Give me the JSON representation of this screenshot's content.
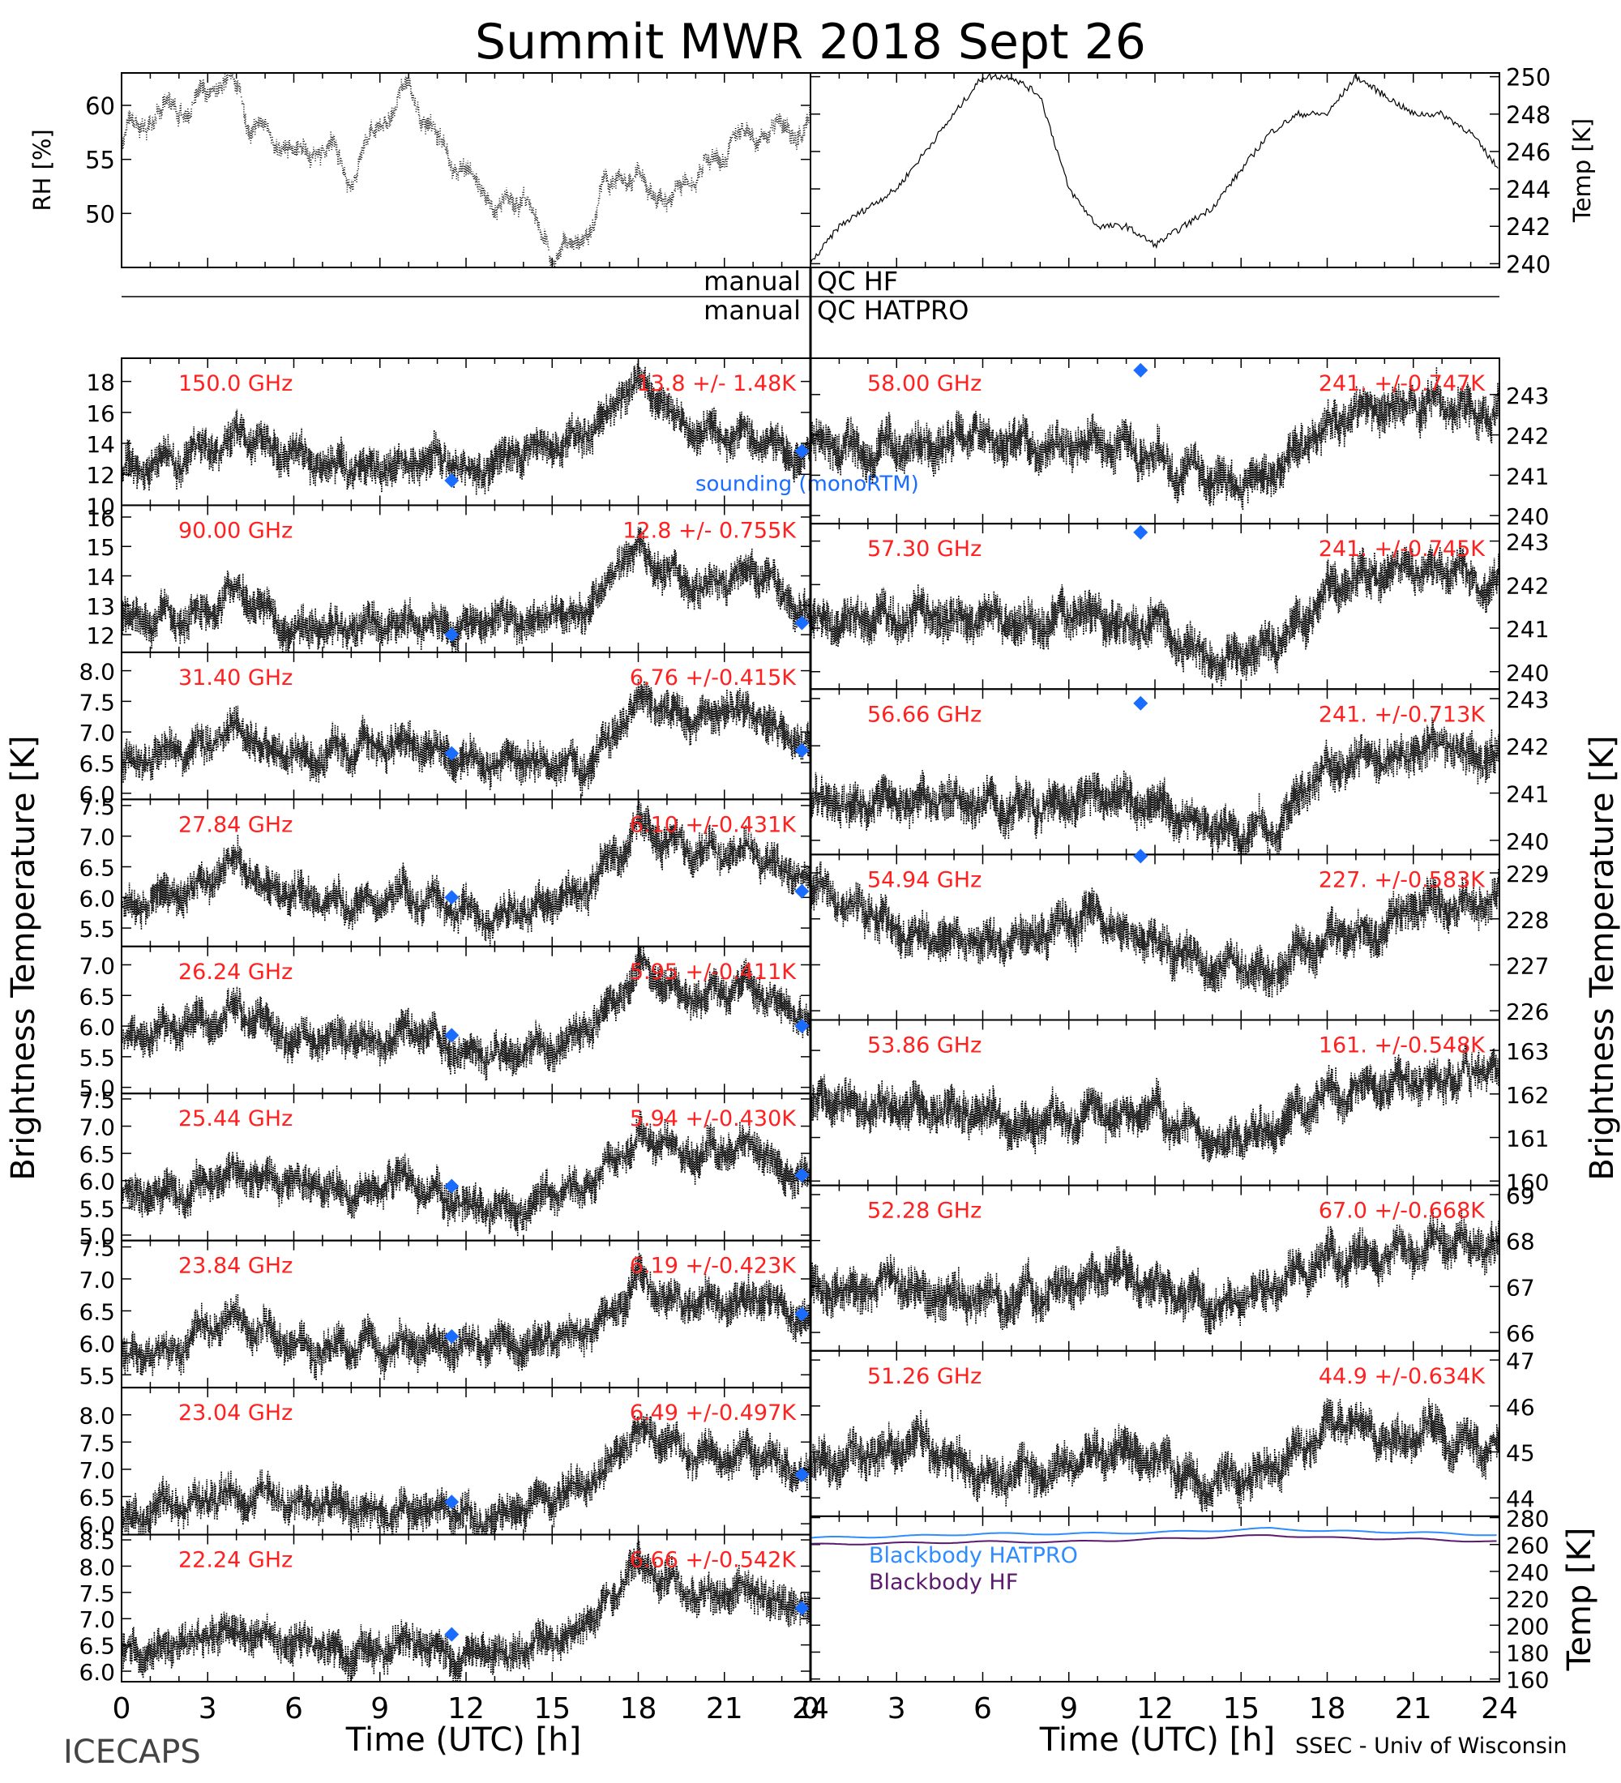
{
  "figure": {
    "title": "Summit MWR 2018 Sept 26",
    "footer_left": "ICECAPS",
    "footer_right": "SSEC - Univ of Wisconsin",
    "left_axis_label": "Brightness Temperature [K]",
    "right_axis_label": "Brightness Temperature [K]",
    "xlabel": "Time (UTC) [h]",
    "x_ticks": [
      "0",
      "3",
      "6",
      "9",
      "12",
      "15",
      "18",
      "21",
      "24"
    ],
    "qc_rows": [
      {
        "left": "manual",
        "right": "QC HF"
      },
      {
        "left": "manual",
        "right": "QC HATPRO"
      }
    ],
    "sounding_label": "sounding (monoRTM)",
    "colors": {
      "trace": "#000000",
      "stats": "#ff2020",
      "sounding": "#1a6cff",
      "bb_hatpro": "#2f8cff",
      "bb_hf": "#5a1a6e"
    }
  },
  "chart_data": [
    {
      "type": "scatter",
      "panel": "rh",
      "ylabel": "RH [%]",
      "yticks": [
        "50",
        "55",
        "60"
      ],
      "ylim": [
        45,
        63
      ],
      "xlim": [
        0,
        24
      ],
      "x": [
        0,
        1,
        2,
        3,
        4,
        5,
        6,
        7,
        8,
        9,
        10,
        11,
        12,
        13,
        14,
        15,
        16,
        17,
        18,
        19,
        20,
        21,
        22,
        23,
        24
      ],
      "values": [
        57,
        59,
        60,
        61,
        61,
        57,
        55,
        56,
        54,
        58,
        61,
        57,
        53,
        50,
        52,
        46,
        47,
        52,
        53,
        51,
        53,
        56,
        58,
        58,
        57
      ]
    },
    {
      "type": "line",
      "panel": "temp",
      "ylabel": "Temp [K]",
      "yticks": [
        "240",
        "242",
        "244",
        "246",
        "248",
        "250"
      ],
      "ylim": [
        239.8,
        250.2
      ],
      "xlim": [
        0,
        24
      ],
      "x": [
        0,
        1,
        2,
        3,
        4,
        5,
        6,
        7,
        8,
        9,
        10,
        11,
        12,
        13,
        14,
        15,
        16,
        17,
        18,
        19,
        20,
        21,
        22,
        23,
        24
      ],
      "values": [
        240,
        242,
        243,
        244,
        246,
        248,
        250,
        250,
        249,
        244,
        242,
        242,
        241,
        242,
        243,
        245,
        247,
        248,
        248,
        250,
        249,
        248,
        248,
        247,
        245
      ]
    },
    {
      "type": "scatter",
      "col": "left",
      "channel": "150.0 GHz",
      "stats": "13.8 +/- 1.48K",
      "ylim": [
        10,
        19.5
      ],
      "yticks": [
        "10",
        "12",
        "14",
        "16",
        "18"
      ],
      "x": [
        0,
        2,
        4,
        6,
        8,
        10,
        12,
        14,
        16,
        18,
        20,
        22,
        24
      ],
      "values": [
        12.5,
        13,
        14.5,
        13,
        12.5,
        13,
        12.5,
        13.5,
        14,
        18,
        15,
        14.5,
        13
      ],
      "sounding": [
        [
          11.5,
          11.6
        ],
        [
          23.7,
          13.5
        ]
      ]
    },
    {
      "type": "scatter",
      "col": "left",
      "channel": "90.00 GHz",
      "stats": "12.8 +/- 0.755K",
      "ylim": [
        11.4,
        16.4
      ],
      "yticks": [
        "12",
        "13",
        "14",
        "15",
        "16"
      ],
      "x": [
        0,
        2,
        4,
        6,
        8,
        10,
        12,
        14,
        16,
        18,
        20,
        22,
        24
      ],
      "values": [
        12.5,
        12.5,
        13.5,
        12.3,
        12.3,
        12.5,
        12.3,
        12.7,
        12.7,
        15,
        13.5,
        14,
        12.5
      ],
      "sounding": [
        [
          11.5,
          12
        ],
        [
          23.7,
          12.4
        ]
      ]
    },
    {
      "type": "scatter",
      "col": "left",
      "channel": "31.40 GHz",
      "stats": "6.76 +/-0.415K",
      "ylim": [
        5.9,
        8.3
      ],
      "yticks": [
        "6.0",
        "6.5",
        "7.0",
        "7.5",
        "8.0"
      ],
      "x": [
        0,
        2,
        4,
        6,
        8,
        10,
        12,
        14,
        16,
        18,
        20,
        22,
        24
      ],
      "values": [
        6.5,
        6.7,
        7,
        6.7,
        6.7,
        6.8,
        6.5,
        6.5,
        6.4,
        7.5,
        7.2,
        7.3,
        6.8
      ],
      "sounding": [
        [
          11.5,
          6.65
        ],
        [
          23.7,
          6.7
        ]
      ]
    },
    {
      "type": "scatter",
      "col": "left",
      "channel": "27.84 GHz",
      "stats": "6.10 +/-0.431K",
      "ylim": [
        5.2,
        7.6
      ],
      "yticks": [
        "5.5",
        "6.0",
        "6.5",
        "7.0",
        "7.5"
      ],
      "x": [
        0,
        2,
        4,
        6,
        8,
        10,
        12,
        14,
        16,
        18,
        20,
        22,
        24
      ],
      "values": [
        5.8,
        6.1,
        6.5,
        6.0,
        6.0,
        6.1,
        5.8,
        5.7,
        6.0,
        7.2,
        6.7,
        6.7,
        6.2
      ],
      "sounding": [
        [
          11.5,
          6.0
        ],
        [
          23.7,
          6.1
        ]
      ]
    },
    {
      "type": "scatter",
      "col": "left",
      "channel": "26.24 GHz",
      "stats": "5.95 +/-0.411K",
      "ylim": [
        4.9,
        7.3
      ],
      "yticks": [
        "5.0",
        "5.5",
        "6.0",
        "6.5",
        "7.0"
      ],
      "x": [
        0,
        2,
        4,
        6,
        8,
        10,
        12,
        14,
        16,
        18,
        20,
        22,
        24
      ],
      "values": [
        5.7,
        6.0,
        6.3,
        5.8,
        5.8,
        5.9,
        5.6,
        5.6,
        5.8,
        6.9,
        6.5,
        6.6,
        6.0
      ],
      "sounding": [
        [
          11.5,
          5.85
        ],
        [
          23.7,
          6.0
        ]
      ]
    },
    {
      "type": "scatter",
      "col": "left",
      "channel": "25.44 GHz",
      "stats": "5.94 +/-0.430K",
      "ylim": [
        4.9,
        7.6
      ],
      "yticks": [
        "5.0",
        "5.5",
        "6.0",
        "6.5",
        "7.0",
        "7.5"
      ],
      "x": [
        0,
        2,
        4,
        6,
        8,
        10,
        12,
        14,
        16,
        18,
        20,
        22,
        24
      ],
      "values": [
        5.7,
        5.9,
        6.2,
        5.8,
        5.8,
        5.9,
        5.5,
        5.5,
        5.8,
        6.9,
        6.5,
        6.6,
        6.0
      ],
      "sounding": [
        [
          11.5,
          5.9
        ],
        [
          23.7,
          6.1
        ]
      ]
    },
    {
      "type": "scatter",
      "col": "left",
      "channel": "23.84 GHz",
      "stats": "6.19 +/-0.423K",
      "ylim": [
        5.3,
        7.6
      ],
      "yticks": [
        "5.5",
        "6.0",
        "6.5",
        "7.0",
        "7.5"
      ],
      "x": [
        0,
        2,
        4,
        6,
        8,
        10,
        12,
        14,
        16,
        18,
        20,
        22,
        24
      ],
      "values": [
        5.8,
        6.0,
        6.4,
        5.9,
        5.9,
        6.0,
        5.9,
        6.0,
        6.1,
        7.0,
        6.6,
        6.8,
        6.4
      ],
      "sounding": [
        [
          11.5,
          6.1
        ],
        [
          23.7,
          6.45
        ]
      ]
    },
    {
      "type": "scatter",
      "col": "left",
      "channel": "23.04 GHz",
      "stats": "6.49 +/-0.497K",
      "ylim": [
        5.8,
        8.5
      ],
      "yticks": [
        "6.0",
        "6.5",
        "7.0",
        "7.5",
        "8.0"
      ],
      "x": [
        0,
        2,
        4,
        6,
        8,
        10,
        12,
        14,
        16,
        18,
        20,
        22,
        24
      ],
      "values": [
        6.1,
        6.3,
        6.6,
        6.4,
        6.3,
        6.3,
        6.1,
        6.3,
        6.5,
        7.7,
        7.3,
        7.4,
        6.9
      ],
      "sounding": [
        [
          11.5,
          6.4
        ],
        [
          23.7,
          6.9
        ]
      ]
    },
    {
      "type": "scatter",
      "col": "left",
      "channel": "22.24 GHz",
      "stats": "6.66 +/-0.542K",
      "ylim": [
        5.8,
        8.6
      ],
      "yticks": [
        "6.0",
        "6.5",
        "7.0",
        "7.5",
        "8.0",
        "8.5"
      ],
      "x": [
        0,
        2,
        4,
        6,
        8,
        10,
        12,
        14,
        16,
        18,
        20,
        22,
        24
      ],
      "values": [
        6.3,
        6.5,
        6.7,
        6.5,
        6.4,
        6.5,
        6.2,
        6.5,
        6.8,
        8.0,
        7.5,
        7.6,
        7.1
      ],
      "sounding": [
        [
          11.5,
          6.7
        ],
        [
          23.7,
          7.2
        ]
      ]
    },
    {
      "type": "scatter",
      "col": "right",
      "channel": "58.00 GHz",
      "stats": "241. +/-0.747K",
      "ylim": [
        239.8,
        243.9
      ],
      "yticks": [
        "240",
        "241",
        "242",
        "243"
      ],
      "x": [
        0,
        2,
        4,
        6,
        8,
        10,
        12,
        14,
        16,
        18,
        20,
        22,
        24
      ],
      "values": [
        241.7,
        241.6,
        241.8,
        242.0,
        241.6,
        242.0,
        241.4,
        240.9,
        241.0,
        242.3,
        242.7,
        242.8,
        242.6
      ],
      "sounding": [
        [
          11.5,
          243.6
        ]
      ]
    },
    {
      "type": "scatter",
      "col": "right",
      "channel": "57.30 GHz",
      "stats": "241. +/-0.745K",
      "ylim": [
        239.6,
        243.4
      ],
      "yticks": [
        "240",
        "241",
        "242",
        "243"
      ],
      "x": [
        0,
        2,
        4,
        6,
        8,
        10,
        12,
        14,
        16,
        18,
        20,
        22,
        24
      ],
      "values": [
        241.1,
        241.1,
        241.3,
        241.2,
        241.1,
        241.4,
        241.0,
        240.4,
        240.6,
        241.9,
        242.2,
        242.4,
        242.1
      ],
      "sounding": [
        [
          11.5,
          243.2
        ]
      ]
    },
    {
      "type": "scatter",
      "col": "right",
      "channel": "56.66 GHz",
      "stats": "241. +/-0.713K",
      "ylim": [
        239.7,
        243.2
      ],
      "yticks": [
        "240",
        "241",
        "242",
        "243"
      ],
      "x": [
        0,
        2,
        4,
        6,
        8,
        10,
        12,
        14,
        16,
        18,
        20,
        22,
        24
      ],
      "values": [
        240.9,
        240.7,
        240.8,
        240.8,
        240.7,
        241.0,
        240.7,
        240.2,
        240.3,
        241.5,
        241.8,
        242.0,
        241.7
      ],
      "sounding": [
        [
          11.5,
          242.9
        ]
      ]
    },
    {
      "type": "scatter",
      "col": "right",
      "channel": "54.94 GHz",
      "stats": "227. +/-0.583K",
      "ylim": [
        225.8,
        229.4
      ],
      "yticks": [
        "226",
        "227",
        "228",
        "229"
      ],
      "x": [
        0,
        2,
        4,
        6,
        8,
        10,
        12,
        14,
        16,
        18,
        20,
        22,
        24
      ],
      "values": [
        228.6,
        228.1,
        227.7,
        227.5,
        227.6,
        227.9,
        227.6,
        226.9,
        226.9,
        227.6,
        228.0,
        228.3,
        228.6
      ],
      "sounding": [
        [
          11.5,
          229.4
        ]
      ]
    },
    {
      "type": "scatter",
      "col": "right",
      "channel": "53.86 GHz",
      "stats": "161. +/-0.548K",
      "ylim": [
        159.9,
        163.7
      ],
      "yticks": [
        "160",
        "161",
        "162",
        "163"
      ],
      "x": [
        0,
        2,
        4,
        6,
        8,
        10,
        12,
        14,
        16,
        18,
        20,
        22,
        24
      ],
      "values": [
        161.8,
        161.8,
        161.7,
        161.5,
        161.4,
        161.6,
        161.5,
        161.0,
        161.1,
        161.9,
        162.2,
        162.4,
        162.5
      ]
    },
    {
      "type": "scatter",
      "col": "right",
      "channel": "52.28 GHz",
      "stats": "67.0 +/-0.668K",
      "ylim": [
        65.6,
        69.2
      ],
      "yticks": [
        "66",
        "67",
        "68",
        "69"
      ],
      "x": [
        0,
        2,
        4,
        6,
        8,
        10,
        12,
        14,
        16,
        18,
        20,
        22,
        24
      ],
      "values": [
        67.0,
        67.1,
        66.9,
        66.8,
        66.7,
        67.3,
        67.1,
        66.5,
        66.8,
        67.7,
        67.6,
        68.1,
        67.8
      ]
    },
    {
      "type": "scatter",
      "col": "right",
      "channel": "51.26 GHz",
      "stats": "44.9 +/-0.634K",
      "ylim": [
        43.6,
        47.2
      ],
      "yticks": [
        "44",
        "45",
        "46",
        "47"
      ],
      "x": [
        0,
        2,
        4,
        6,
        8,
        10,
        12,
        14,
        16,
        18,
        20,
        22,
        24
      ],
      "values": [
        44.7,
        45.0,
        45.2,
        44.6,
        44.5,
        45.0,
        44.9,
        44.3,
        44.6,
        45.8,
        45.3,
        45.4,
        45.2
      ]
    },
    {
      "type": "line",
      "col": "right",
      "panel": "blackbody",
      "ylabel": "Temp [K]",
      "ylim": [
        158,
        281
      ],
      "yticks": [
        "160",
        "180",
        "200",
        "220",
        "240",
        "260",
        "280"
      ],
      "series": [
        {
          "name": "Blackbody HATPRO",
          "x": [
            0,
            3,
            6,
            9,
            12,
            15,
            16,
            18,
            21,
            24
          ],
          "values": [
            265,
            266,
            268,
            268,
            269,
            271,
            272,
            270,
            269,
            267
          ]
        },
        {
          "name": "Blackbody HF",
          "x": [
            0,
            3,
            6,
            9,
            12,
            15,
            16,
            18,
            21,
            24
          ],
          "values": [
            260,
            261,
            262,
            262,
            264,
            266,
            267,
            265,
            264,
            262
          ]
        }
      ]
    }
  ]
}
